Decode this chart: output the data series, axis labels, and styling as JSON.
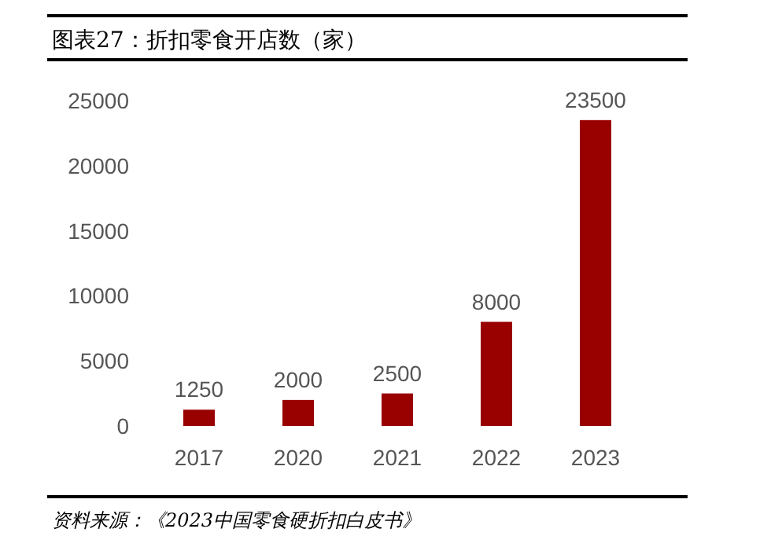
{
  "chart_data": [
    {
      "type": "bar",
      "title": "图表27：折扣零食开店数（家）",
      "categories": [
        "2017",
        "2020",
        "2021",
        "2022",
        "2023"
      ],
      "values": [
        1250,
        2000,
        2500,
        8000,
        23500
      ],
      "color": "#990000",
      "ylim": [
        0,
        25000
      ],
      "yticks": [
        0,
        5000,
        10000,
        15000,
        20000,
        25000
      ],
      "data_labels": true,
      "grid": false,
      "annotations": [
        "资料来源：《2023中国零食硬折扣白皮书》"
      ]
    }
  ]
}
